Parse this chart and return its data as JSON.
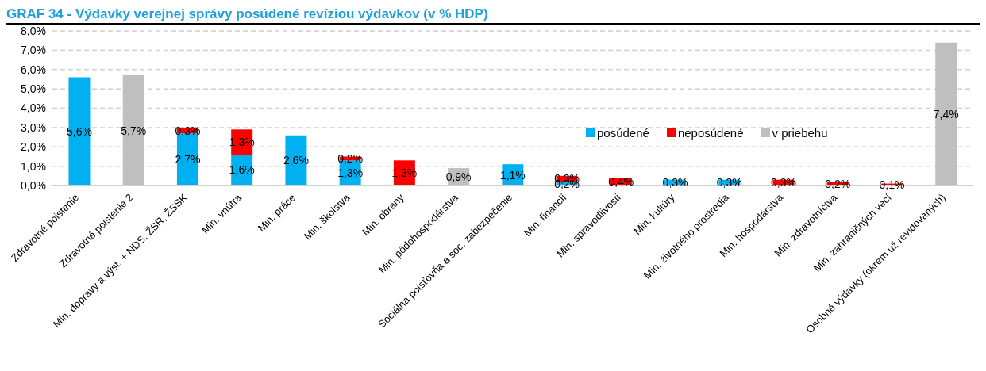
{
  "chart_data": {
    "type": "bar",
    "title": "GRAF 34 - Výdavky verejnej správy posúdené revíziou výdavkov (v % HDP)",
    "stacked": true,
    "categories": [
      "Zdravotné poistenie",
      "Zdravotné poistenie 2",
      "Min. dopravy a výst. + NDS, ŽSR, ŽSSK",
      "Min. vnútra",
      "Min. práce",
      "Min. školstva",
      "Min. obrany",
      "Min. pôdohospodárstva",
      "Sociálna poisťovňa a soc. zabezpečenie",
      "Min. financií",
      "Min. spravodlivosti",
      "Min. kultúry",
      "Min. životného prostredia",
      "Min. hospodárstva",
      "Min. zdravotníctva",
      "Min. zahraničných vecí",
      "Osobné výdavky (okrem už revidovaných)"
    ],
    "series": [
      {
        "name": "posúdené",
        "color": "#00b0f0",
        "values": [
          5.6,
          null,
          2.7,
          1.6,
          2.6,
          1.3,
          null,
          null,
          1.1,
          0.2,
          null,
          0.3,
          0.3,
          null,
          null,
          null,
          null
        ],
        "value_labels": [
          "5,6%",
          null,
          "2,7%",
          "1,6%",
          "2,6%",
          "1,3%",
          null,
          null,
          "1,1%",
          "0,2%",
          null,
          "0,3%",
          "0,3%",
          null,
          null,
          null,
          null
        ]
      },
      {
        "name": "neposúdené",
        "color": "#ff0000",
        "values": [
          null,
          null,
          0.3,
          1.3,
          null,
          0.2,
          1.3,
          null,
          null,
          0.3,
          0.4,
          null,
          null,
          0.3,
          0.2,
          0.1,
          null
        ],
        "value_labels": [
          null,
          null,
          "0,3%",
          "1,3%",
          null,
          "0,2%",
          "1,3%",
          null,
          null,
          "0,3%",
          "0,4%",
          null,
          null,
          "0,3%",
          "0,2%",
          "0,1%",
          null
        ]
      },
      {
        "name": "v priebehu",
        "color": "#bfbfbf",
        "values": [
          null,
          5.7,
          null,
          null,
          null,
          null,
          null,
          0.9,
          null,
          null,
          null,
          null,
          null,
          null,
          null,
          null,
          7.4
        ],
        "value_labels": [
          null,
          "5,7%",
          null,
          null,
          null,
          null,
          null,
          "0,9%",
          null,
          null,
          null,
          null,
          null,
          null,
          null,
          null,
          "7,4%"
        ]
      }
    ],
    "ylim": [
      0,
      8
    ],
    "yticks": [
      {
        "value": 0,
        "label": "0,0%"
      },
      {
        "value": 1,
        "label": "1,0%"
      },
      {
        "value": 2,
        "label": "2,0%"
      },
      {
        "value": 3,
        "label": "3,0%"
      },
      {
        "value": 4,
        "label": "4,0%"
      },
      {
        "value": 5,
        "label": "5,0%"
      },
      {
        "value": 6,
        "label": "6,0%"
      },
      {
        "value": 7,
        "label": "7,0%"
      },
      {
        "value": 8,
        "label": "8,0%"
      }
    ],
    "grid": "y",
    "legend": "right"
  }
}
